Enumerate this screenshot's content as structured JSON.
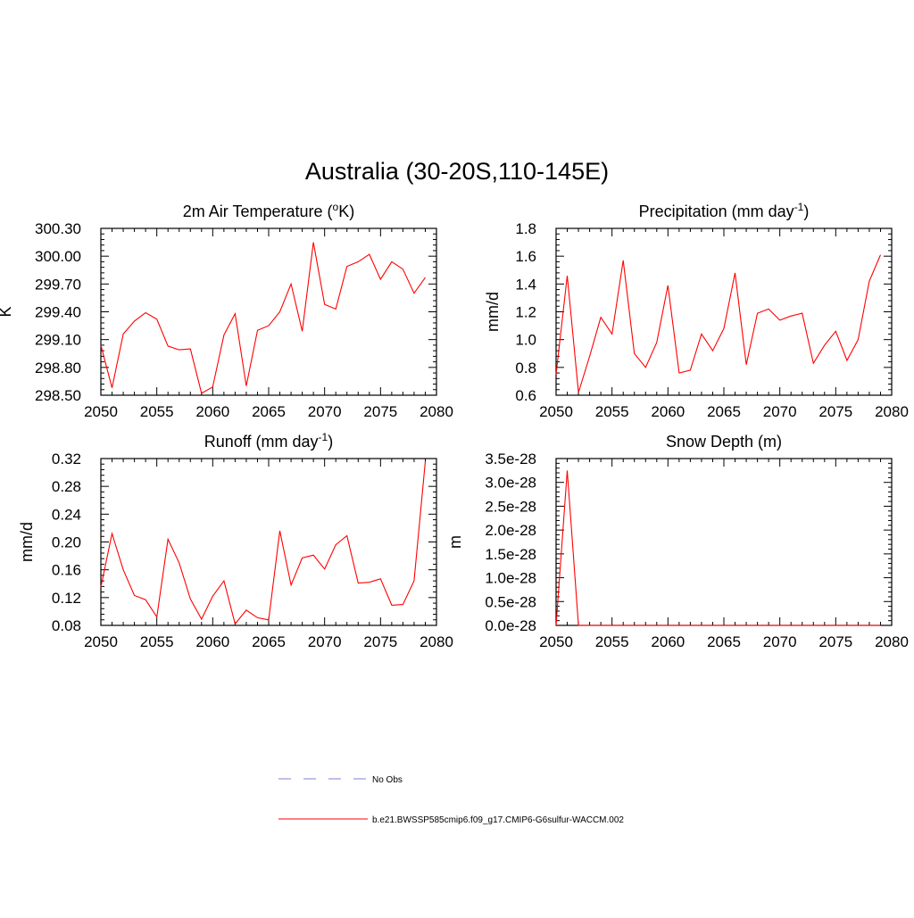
{
  "title": "Australia (30-20S,110-145E)",
  "legend": {
    "items": [
      {
        "label": "No Obs",
        "color": "#9999dd",
        "dash": "dashed"
      },
      {
        "label": "b.e21.BWSSP585cmip6.f09_g17.CMIP6-G6sulfur-WACCM.002",
        "color": "#ff0000",
        "dash": "solid"
      }
    ]
  },
  "chart_data": [
    {
      "type": "line",
      "title": "2m Air Temperature (",
      "title_sup": "o",
      "title_after": "K)",
      "ylabel": "K",
      "xlabel": "",
      "xlim": [
        2050,
        2080
      ],
      "ylim": [
        298.5,
        300.3
      ],
      "x_ticks": [
        "2050",
        "2055",
        "2060",
        "2065",
        "2070",
        "2075",
        "2080"
      ],
      "y_ticks": [
        "298.50",
        "298.80",
        "299.10",
        "299.40",
        "299.70",
        "300.00",
        "300.30"
      ],
      "series_color": "#ff0000",
      "x": [
        2050,
        2051,
        2052,
        2053,
        2054,
        2055,
        2056,
        2057,
        2058,
        2059,
        2060,
        2061,
        2062,
        2063,
        2064,
        2065,
        2066,
        2067,
        2068,
        2069,
        2070,
        2071,
        2072,
        2073,
        2074,
        2075,
        2076,
        2077,
        2078,
        2079
      ],
      "values": [
        299.04,
        298.58,
        299.16,
        299.3,
        299.39,
        299.32,
        299.03,
        298.99,
        299.0,
        298.52,
        298.59,
        299.15,
        299.38,
        298.6,
        299.2,
        299.25,
        299.4,
        299.7,
        299.19,
        300.15,
        299.48,
        299.43,
        299.89,
        299.94,
        300.02,
        299.75,
        299.94,
        299.86,
        299.6,
        299.77
      ]
    },
    {
      "type": "line",
      "title": "Precipitation (mm day",
      "title_sup": "-1",
      "title_after": ")",
      "ylabel": "mm/d",
      "xlabel": "",
      "xlim": [
        2050,
        2080
      ],
      "ylim": [
        0.6,
        1.8
      ],
      "x_ticks": [
        "2050",
        "2055",
        "2060",
        "2065",
        "2070",
        "2075",
        "2080"
      ],
      "y_ticks": [
        "0.6",
        "0.8",
        "1.0",
        "1.2",
        "1.4",
        "1.6",
        "1.8"
      ],
      "series_color": "#ff0000",
      "x": [
        2050,
        2051,
        2052,
        2053,
        2054,
        2055,
        2056,
        2057,
        2058,
        2059,
        2060,
        2061,
        2062,
        2063,
        2064,
        2065,
        2066,
        2067,
        2068,
        2069,
        2070,
        2071,
        2072,
        2073,
        2074,
        2075,
        2076,
        2077,
        2078,
        2079
      ],
      "values": [
        0.75,
        1.46,
        0.62,
        0.88,
        1.16,
        1.04,
        1.57,
        0.9,
        0.8,
        0.98,
        1.39,
        0.76,
        0.78,
        1.04,
        0.92,
        1.08,
        1.48,
        0.82,
        1.19,
        1.22,
        1.14,
        1.17,
        1.19,
        0.83,
        0.96,
        1.06,
        0.85,
        1.0,
        1.42,
        1.61
      ]
    },
    {
      "type": "line",
      "title": "Runoff (mm day",
      "title_sup": "-1",
      "title_after": ")",
      "ylabel": "mm/d",
      "xlabel": "",
      "xlim": [
        2050,
        2080
      ],
      "ylim": [
        0.08,
        0.32
      ],
      "x_ticks": [
        "2050",
        "2055",
        "2060",
        "2065",
        "2070",
        "2075",
        "2080"
      ],
      "y_ticks": [
        "0.08",
        "0.12",
        "0.16",
        "0.20",
        "0.24",
        "0.28",
        "0.32"
      ],
      "series_color": "#ff0000",
      "x": [
        2050,
        2051,
        2052,
        2053,
        2054,
        2055,
        2056,
        2057,
        2058,
        2059,
        2060,
        2061,
        2062,
        2063,
        2064,
        2065,
        2066,
        2067,
        2068,
        2069,
        2070,
        2071,
        2072,
        2073,
        2074,
        2075,
        2076,
        2077,
        2078,
        2079
      ],
      "values": [
        0.135,
        0.212,
        0.16,
        0.123,
        0.117,
        0.092,
        0.204,
        0.17,
        0.118,
        0.089,
        0.122,
        0.144,
        0.082,
        0.102,
        0.091,
        0.088,
        0.216,
        0.138,
        0.177,
        0.181,
        0.161,
        0.196,
        0.209,
        0.141,
        0.142,
        0.147,
        0.109,
        0.11,
        0.144,
        0.316
      ]
    },
    {
      "type": "line",
      "title": "Snow Depth (m)",
      "title_sup": "",
      "title_after": "",
      "ylabel": "m",
      "xlabel": "",
      "xlim": [
        2050,
        2080
      ],
      "ylim": [
        0,
        3.5
      ],
      "y_unit": "1e-28",
      "x_ticks": [
        "2050",
        "2055",
        "2060",
        "2065",
        "2070",
        "2075",
        "2080"
      ],
      "y_ticks": [
        "0.0e-28",
        "0.5e-28",
        "1.0e-28",
        "1.5e-28",
        "2.0e-28",
        "2.5e-28",
        "3.0e-28",
        "3.5e-28"
      ],
      "series_color": "#ff0000",
      "x": [
        2050,
        2051,
        2052,
        2053,
        2054,
        2055,
        2056,
        2057,
        2058,
        2059,
        2060,
        2061,
        2062,
        2063,
        2064,
        2065,
        2066,
        2067,
        2068,
        2069,
        2070,
        2071,
        2072,
        2073,
        2074,
        2075,
        2076,
        2077,
        2078,
        2079
      ],
      "values": [
        0,
        3.25,
        0,
        0,
        0,
        0,
        0,
        0,
        0,
        0,
        0,
        0,
        0,
        0,
        0,
        0,
        0,
        0,
        0,
        0,
        0,
        0,
        0,
        0,
        0,
        0,
        0,
        0,
        0,
        0
      ]
    }
  ]
}
